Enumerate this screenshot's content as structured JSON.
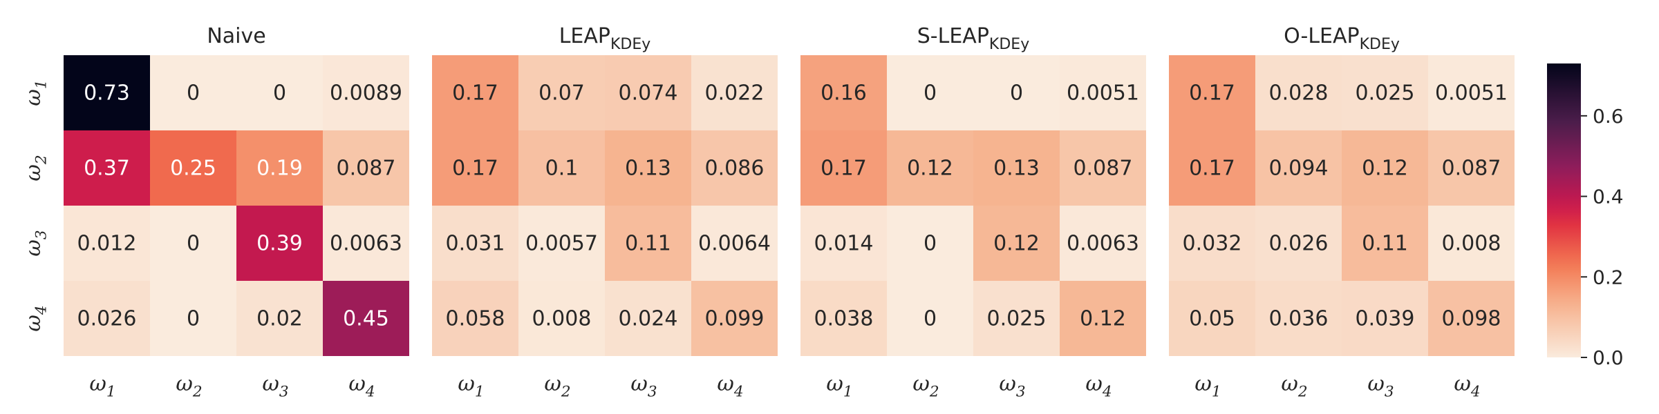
{
  "chart_data": {
    "type": "heatmap",
    "row_labels": [
      {
        "base": "ω",
        "sub": "1"
      },
      {
        "base": "ω",
        "sub": "2"
      },
      {
        "base": "ω",
        "sub": "3"
      },
      {
        "base": "ω",
        "sub": "4"
      }
    ],
    "col_labels": [
      {
        "base": "ω",
        "sub": "1"
      },
      {
        "base": "ω",
        "sub": "2"
      },
      {
        "base": "ω",
        "sub": "3"
      },
      {
        "base": "ω",
        "sub": "4"
      }
    ],
    "panels": [
      {
        "title": "Naive",
        "title_sub": "",
        "matrix": [
          [
            0.73,
            0,
            0,
            0.0089
          ],
          [
            0.37,
            0.25,
            0.19,
            0.087
          ],
          [
            0.012,
            0,
            0.39,
            0.0063
          ],
          [
            0.026,
            0,
            0.02,
            0.45
          ]
        ],
        "labels": [
          [
            "0.73",
            "0",
            "0",
            "0.0089"
          ],
          [
            "0.37",
            "0.25",
            "0.19",
            "0.087"
          ],
          [
            "0.012",
            "0",
            "0.39",
            "0.0063"
          ],
          [
            "0.026",
            "0",
            "0.02",
            "0.45"
          ]
        ]
      },
      {
        "title": "LEAP",
        "title_sub": "KDEy",
        "matrix": [
          [
            0.17,
            0.07,
            0.074,
            0.022
          ],
          [
            0.17,
            0.1,
            0.13,
            0.086
          ],
          [
            0.031,
            0.0057,
            0.11,
            0.0064
          ],
          [
            0.058,
            0.008,
            0.024,
            0.099
          ]
        ],
        "labels": [
          [
            "0.17",
            "0.07",
            "0.074",
            "0.022"
          ],
          [
            "0.17",
            "0.1",
            "0.13",
            "0.086"
          ],
          [
            "0.031",
            "0.0057",
            "0.11",
            "0.0064"
          ],
          [
            "0.058",
            "0.008",
            "0.024",
            "0.099"
          ]
        ]
      },
      {
        "title": "S-LEAP",
        "title_sub": "KDEy",
        "matrix": [
          [
            0.16,
            0,
            0,
            0.0051
          ],
          [
            0.17,
            0.12,
            0.13,
            0.087
          ],
          [
            0.014,
            0,
            0.12,
            0.0063
          ],
          [
            0.038,
            0,
            0.025,
            0.12
          ]
        ],
        "labels": [
          [
            "0.16",
            "0",
            "0",
            "0.0051"
          ],
          [
            "0.17",
            "0.12",
            "0.13",
            "0.087"
          ],
          [
            "0.014",
            "0",
            "0.12",
            "0.0063"
          ],
          [
            "0.038",
            "0",
            "0.025",
            "0.12"
          ]
        ]
      },
      {
        "title": "O-LEAP",
        "title_sub": "KDEy",
        "matrix": [
          [
            0.17,
            0.028,
            0.025,
            0.0051
          ],
          [
            0.17,
            0.094,
            0.12,
            0.087
          ],
          [
            0.032,
            0.026,
            0.11,
            0.008
          ],
          [
            0.05,
            0.036,
            0.039,
            0.098
          ]
        ],
        "labels": [
          [
            "0.17",
            "0.028",
            "0.025",
            "0.0051"
          ],
          [
            "0.17",
            "0.094",
            "0.12",
            "0.087"
          ],
          [
            "0.032",
            "0.026",
            "0.11",
            "0.008"
          ],
          [
            "0.05",
            "0.036",
            "0.039",
            "0.098"
          ]
        ]
      }
    ],
    "colormap": "rocket_r",
    "vmin": 0,
    "vmax": 0.73,
    "colorbar_ticks": [
      {
        "value": 0.0,
        "label": "0.0"
      },
      {
        "value": 0.2,
        "label": "0.2"
      },
      {
        "value": 0.4,
        "label": "0.4"
      },
      {
        "value": 0.6,
        "label": "0.6"
      }
    ],
    "colors": {
      "cmap_stops": [
        [
          "#faebdd",
          0.0
        ],
        [
          "#f6b38f",
          0.18
        ],
        [
          "#f37651",
          0.32
        ],
        [
          "#e13342",
          0.45
        ],
        [
          "#c9184e",
          0.52
        ],
        [
          "#8e1d5b",
          0.65
        ],
        [
          "#4c1d4b",
          0.8
        ],
        [
          "#03051a",
          1.0
        ]
      ]
    }
  }
}
